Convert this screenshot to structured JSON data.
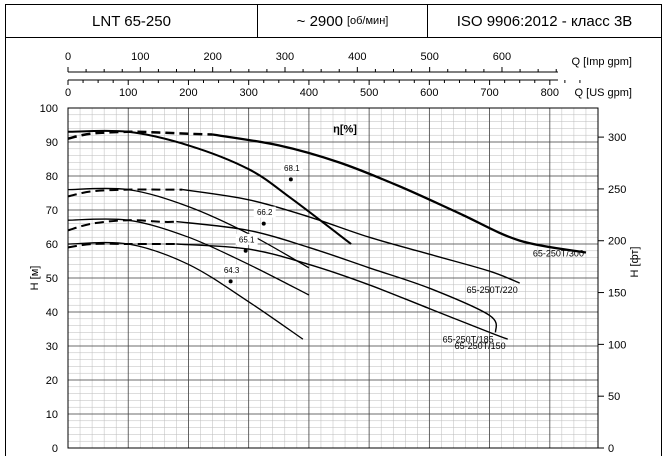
{
  "header": {
    "model": "LNT 65-250",
    "speed_value": "~ 2900",
    "speed_unit": "[об/мин]",
    "standard": "ISO 9906:2012 -  класс 3B"
  },
  "chart_data": {
    "type": "line",
    "title": "",
    "x_axis_primary": {
      "label": "Q [US gpm]",
      "ticks": [
        0,
        100,
        200,
        300,
        400,
        500,
        600,
        700,
        800
      ],
      "range": [
        0,
        880
      ]
    },
    "x_axis_secondary": {
      "label": "Q [Imp gpm]",
      "ticks": [
        0,
        100,
        200,
        300,
        400,
        500,
        600
      ]
    },
    "y_axis_left": {
      "label": "H [м]",
      "ticks": [
        0,
        10,
        20,
        30,
        40,
        50,
        60,
        70,
        80,
        90,
        100
      ],
      "range": [
        0,
        100
      ]
    },
    "y_axis_right": {
      "label": "H [фт]",
      "ticks": [
        0,
        50,
        100,
        150,
        200,
        250,
        300
      ]
    },
    "grid": true,
    "efficiency_label": "η[%]",
    "series": [
      {
        "name": "65-250T/300",
        "dashed": [
          [
            0,
            91
          ],
          [
            40,
            92.5
          ],
          [
            100,
            93
          ],
          [
            150,
            92.8
          ],
          [
            200,
            92.4
          ],
          [
            240,
            92.2
          ]
        ],
        "values": [
          [
            240,
            92.2
          ],
          [
            350,
            89
          ],
          [
            450,
            84
          ],
          [
            550,
            77
          ],
          [
            650,
            69
          ],
          [
            750,
            61
          ],
          [
            860,
            57.5
          ]
        ]
      },
      {
        "name": "65-250T/220",
        "dashed": [
          [
            0,
            74
          ],
          [
            40,
            75.5
          ],
          [
            100,
            76
          ],
          [
            150,
            76
          ],
          [
            190,
            76
          ]
        ],
        "values": [
          [
            190,
            76
          ],
          [
            300,
            73
          ],
          [
            400,
            68
          ],
          [
            500,
            62
          ],
          [
            600,
            57
          ],
          [
            700,
            52
          ],
          [
            750,
            48.5
          ]
        ]
      },
      {
        "name": "65-250T/185",
        "dashed": [
          [
            0,
            64
          ],
          [
            40,
            66
          ],
          [
            100,
            67
          ],
          [
            160,
            66.5
          ],
          [
            180,
            66.6
          ]
        ],
        "values": [
          [
            180,
            66.6
          ],
          [
            300,
            64
          ],
          [
            400,
            59
          ],
          [
            500,
            53
          ],
          [
            600,
            47
          ],
          [
            700,
            39
          ],
          [
            710,
            34
          ]
        ]
      },
      {
        "name": "65-250T/150",
        "dashed": [
          [
            0,
            59
          ],
          [
            40,
            60
          ],
          [
            100,
            60
          ],
          [
            160,
            60
          ],
          [
            180,
            60
          ]
        ],
        "values": [
          [
            180,
            60
          ],
          [
            300,
            58.5
          ],
          [
            400,
            54
          ],
          [
            500,
            48
          ],
          [
            600,
            41
          ],
          [
            700,
            34
          ],
          [
            730,
            32
          ]
        ]
      }
    ],
    "efficiency_points": [
      {
        "label": "68.1",
        "x": 370,
        "y": 79
      },
      {
        "label": "66.2",
        "x": 325,
        "y": 66
      },
      {
        "label": "65.1",
        "x": 295,
        "y": 58
      },
      {
        "label": "64.3",
        "x": 270,
        "y": 49
      }
    ],
    "efficiency_curves": [
      {
        "values": [
          [
            0,
            93
          ],
          [
            100,
            93
          ],
          [
            200,
            89
          ],
          [
            300,
            82
          ],
          [
            370,
            73.5
          ],
          [
            470,
            60
          ]
        ]
      },
      {
        "values": [
          [
            0,
            76
          ],
          [
            100,
            76
          ],
          [
            200,
            71
          ],
          [
            300,
            63
          ],
          [
            400,
            53
          ]
        ]
      },
      {
        "values": [
          [
            0,
            67
          ],
          [
            100,
            67
          ],
          [
            200,
            62
          ],
          [
            300,
            54
          ],
          [
            400,
            45
          ]
        ]
      },
      {
        "values": [
          [
            0,
            60
          ],
          [
            100,
            60
          ],
          [
            200,
            54
          ],
          [
            300,
            43
          ],
          [
            390,
            32
          ]
        ]
      }
    ]
  }
}
